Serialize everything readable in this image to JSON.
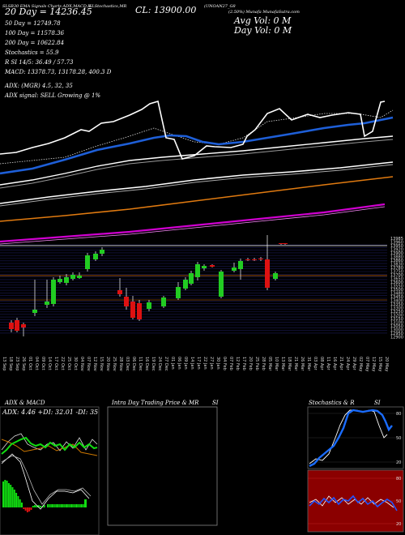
{
  "header": {
    "line1": "SLSB30 EMA Signals Charts ADX,MACD,R",
    "line1b": "SLStochastics,MR",
    "close": "CL: 13900.00",
    "ticker": "(UNOAN27_G8",
    "site": "(2.50%) Munafa MunafaSutra.com",
    "ma20": "20  Day = 14236.45",
    "ma50": "50  Day = 12749.78",
    "ma100": "100  Day = 11578.36",
    "ma200": "200  Day = 10622.84",
    "stoch": "Stochastics = 55.9",
    "rsi": "R  SI 14/5: 36.49 / 57.73",
    "macd": "MACD: 13378.73,  13178.28,  400.3 D",
    "avg_vol": "Avg Vol: 0  M",
    "day_vol": "Day Vol: 0  M",
    "adx": "ADX:                    (MGR) 4.5,  32,  35",
    "adx_signal": "ADX  signal: SELL  Growing @ 1%"
  },
  "price_axis": [
    "13985",
    "13960",
    "13950",
    "13920",
    "13900",
    "13880",
    "13860",
    "13830",
    "13780",
    "13750",
    "13700",
    "13650",
    "13600",
    "13550",
    "13500",
    "13480",
    "13450",
    "13400",
    "13350",
    "13300",
    "13250",
    "13200",
    "13150",
    "13100",
    "13050",
    "13000",
    "12950",
    "12900"
  ],
  "chart_data": {
    "type": "candlestick",
    "categories": [
      "13 Sep",
      "18 Sep",
      "23 Sep",
      "26 Sep",
      "01 Oct",
      "04 Oct",
      "09 Oct",
      "14 Oct",
      "17 Oct",
      "22 Oct",
      "25 Oct",
      "30 Oct",
      "04 Nov",
      "07 Nov",
      "12 Nov",
      "15 Nov",
      "20 Nov",
      "25 Nov",
      "28 Nov",
      "03 Dec",
      "06 Dec",
      "11 Dec",
      "16 Dec",
      "19 Dec",
      "24 Dec",
      "27 Dec",
      "01 Jan",
      "06 Jan",
      "09 Jan",
      "14 Jan",
      "17 Jan",
      "22 Jan",
      "27 Jan",
      "30 Jan",
      "04 Feb",
      "07 Feb",
      "12 Feb",
      "17 Feb",
      "20 Feb",
      "25 Feb",
      "28 Feb",
      "05 Mar",
      "10 Mar",
      "13 Mar",
      "18 Mar",
      "21 Mar",
      "26 Mar",
      "31 Mar",
      "03 Apr",
      "08 Apr",
      "11 Apr",
      "16 Apr",
      "21 Apr",
      "24 Apr",
      "29 Apr",
      "02 May",
      "07 May",
      "12 May",
      "15 May",
      "20 May",
      "23 May",
      "28 May",
      "02 Jun",
      "05 Jun",
      "10 Jun",
      "13 Jun",
      "18 Jun",
      "23 Jun",
      "26 Jun",
      "01 Jul",
      "04 Jul",
      "09 Jul",
      "14 Jul",
      "17 Jul",
      "22 Jul",
      "25 Jul"
    ],
    "close_label": "13900"
  },
  "panels": {
    "adx_title": "ADX  & MACD",
    "adx_values": "ADX: 4.46  +DI: 32.01 -DI: 35",
    "intraday_title": "Intra  Day Trading Price  & MR",
    "intraday_si": "SI",
    "stoch_title": "Stochastics & R",
    "stoch_si": "SI",
    "stoch_ticks": [
      "80",
      "50",
      "20"
    ],
    "rsi_ticks": [
      "80",
      "50",
      "20"
    ]
  },
  "colors": {
    "price": "#ffffff",
    "ema20": "#1e5fd8",
    "ema50": "#ffffff",
    "ema100": "#ffffff",
    "ema200": "#e07a10",
    "ema_magenta": "#d000d0",
    "up": "#22cc22",
    "down": "#dd1111",
    "grid": "#1a1a55",
    "rsi_bg": "#8b0000"
  }
}
